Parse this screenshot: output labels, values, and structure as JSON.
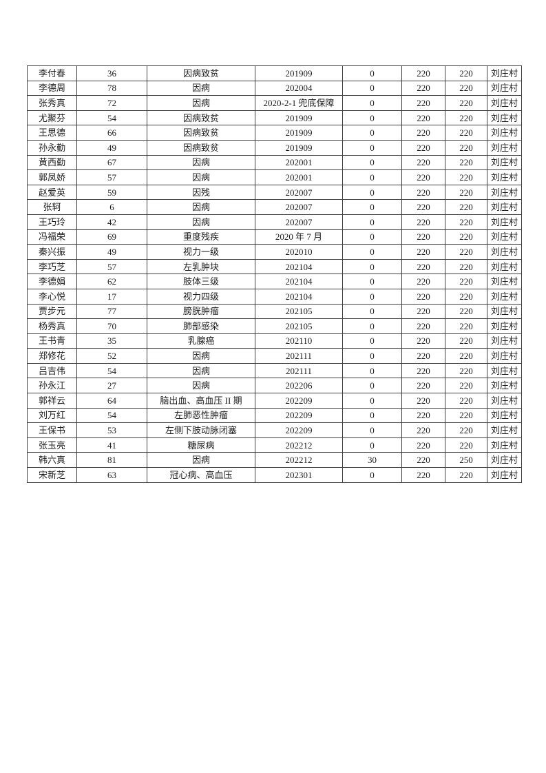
{
  "table": {
    "rows": [
      [
        "李付春",
        "36",
        "因病致贫",
        "201909",
        "0",
        "220",
        "220",
        "刘庄村"
      ],
      [
        "李德周",
        "78",
        "因病",
        "202004",
        "0",
        "220",
        "220",
        "刘庄村"
      ],
      [
        "张秀真",
        "72",
        "因病",
        "2020-2-1 兜底保障",
        "0",
        "220",
        "220",
        "刘庄村"
      ],
      [
        "尤聚芬",
        "54",
        "因病致贫",
        "201909",
        "0",
        "220",
        "220",
        "刘庄村"
      ],
      [
        "王思德",
        "66",
        "因病致贫",
        "201909",
        "0",
        "220",
        "220",
        "刘庄村"
      ],
      [
        "孙永勤",
        "49",
        "因病致贫",
        "201909",
        "0",
        "220",
        "220",
        "刘庄村"
      ],
      [
        "黄西勤",
        "67",
        "因病",
        "202001",
        "0",
        "220",
        "220",
        "刘庄村"
      ],
      [
        "郭凤娇",
        "57",
        "因病",
        "202001",
        "0",
        "220",
        "220",
        "刘庄村"
      ],
      [
        "赵爱英",
        "59",
        "因残",
        "202007",
        "0",
        "220",
        "220",
        "刘庄村"
      ],
      [
        "张轲",
        "6",
        "因病",
        "202007",
        "0",
        "220",
        "220",
        "刘庄村"
      ],
      [
        "王巧玲",
        "42",
        "因病",
        "202007",
        "0",
        "220",
        "220",
        "刘庄村"
      ],
      [
        "冯福荣",
        "69",
        "重度残疾",
        "2020 年 7 月",
        "0",
        "220",
        "220",
        "刘庄村"
      ],
      [
        "秦兴振",
        "49",
        "视力一级",
        "202010",
        "0",
        "220",
        "220",
        "刘庄村"
      ],
      [
        "李巧芝",
        "57",
        "左乳肿块",
        "202104",
        "0",
        "220",
        "220",
        "刘庄村"
      ],
      [
        "李德娟",
        "62",
        "肢体三级",
        "202104",
        "0",
        "220",
        "220",
        "刘庄村"
      ],
      [
        "李心悦",
        "17",
        "视力四级",
        "202104",
        "0",
        "220",
        "220",
        "刘庄村"
      ],
      [
        "贾步元",
        "77",
        "膀胱肿瘤",
        "202105",
        "0",
        "220",
        "220",
        "刘庄村"
      ],
      [
        "杨秀真",
        "70",
        "肺部感染",
        "202105",
        "0",
        "220",
        "220",
        "刘庄村"
      ],
      [
        "王书青",
        "35",
        "乳腺癌",
        "202110",
        "0",
        "220",
        "220",
        "刘庄村"
      ],
      [
        "郑修花",
        "52",
        "因病",
        "202111",
        "0",
        "220",
        "220",
        "刘庄村"
      ],
      [
        "吕吉伟",
        "54",
        "因病",
        "202111",
        "0",
        "220",
        "220",
        "刘庄村"
      ],
      [
        "孙永江",
        "27",
        "因病",
        "202206",
        "0",
        "220",
        "220",
        "刘庄村"
      ],
      [
        "郭祥云",
        "64",
        "脑出血、高血压 II 期",
        "202209",
        "0",
        "220",
        "220",
        "刘庄村"
      ],
      [
        "刘万红",
        "54",
        "左肺恶性肿瘤",
        "202209",
        "0",
        "220",
        "220",
        "刘庄村"
      ],
      [
        "王保书",
        "53",
        "左侧下肢动脉闭塞",
        "202209",
        "0",
        "220",
        "220",
        "刘庄村"
      ],
      [
        "张玉亮",
        "41",
        "糖尿病",
        "202212",
        "0",
        "220",
        "220",
        "刘庄村"
      ],
      [
        "韩六真",
        "81",
        "因病",
        "202212",
        "30",
        "220",
        "250",
        "刘庄村"
      ],
      [
        "宋新芝",
        "63",
        "冠心病、高血压",
        "202301",
        "0",
        "220",
        "220",
        "刘庄村"
      ]
    ]
  }
}
